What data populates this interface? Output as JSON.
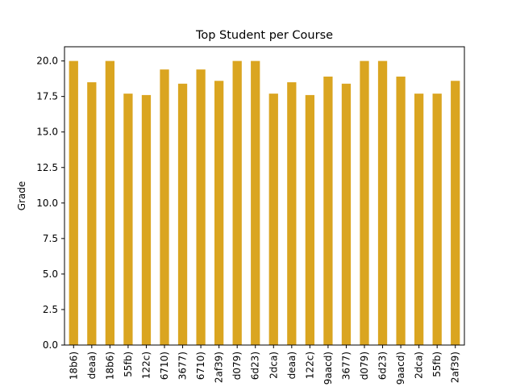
{
  "chart_data": {
    "type": "bar",
    "title": "Top Student per Course",
    "xlabel": "",
    "ylabel": "Grade",
    "categories": [
      "18b6)",
      "deaa)",
      "18b6)",
      "55fb)",
      "122c)",
      "6710)",
      "3677)",
      "6710)",
      "2af39)",
      "d079)",
      "6d23)",
      "2dca)",
      "deaa)",
      "122c)",
      "9aacd)",
      "3677)",
      "d079)",
      "6d23)",
      "9aacd)",
      "2dca)",
      "55fb)",
      "2af39)"
    ],
    "values": [
      20.0,
      18.5,
      20.0,
      17.7,
      17.6,
      19.4,
      18.4,
      19.4,
      18.6,
      20.0,
      20.0,
      17.7,
      18.5,
      17.6,
      18.9,
      18.4,
      20.0,
      20.0,
      18.9,
      17.7,
      17.7,
      18.6
    ],
    "ylim": [
      0,
      21
    ],
    "yticks": [
      "0.0",
      "2.5",
      "5.0",
      "7.5",
      "10.0",
      "12.5",
      "15.0",
      "17.5",
      "20.0"
    ],
    "grid": false,
    "bar_color": "#DAA520"
  }
}
